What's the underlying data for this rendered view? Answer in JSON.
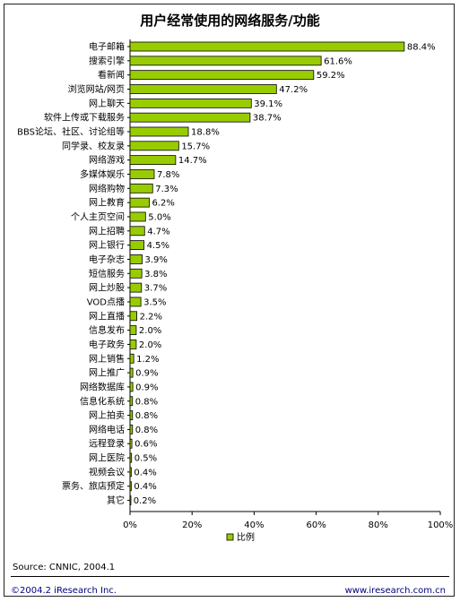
{
  "chart_data": {
    "type": "bar",
    "orientation": "horizontal",
    "title": "用户经常使用的网络服务/功能",
    "categories": [
      "电子邮箱",
      "搜索引擎",
      "看新闻",
      "浏览网站/网页",
      "网上聊天",
      "软件上传或下载服务",
      "BBS论坛、社区、讨论组等",
      "同学录、校友录",
      "网络游戏",
      "多媒体娱乐",
      "网络购物",
      "网上教育",
      "个人主页空间",
      "网上招聘",
      "网上银行",
      "电子杂志",
      "短信服务",
      "网上炒股",
      "VOD点播",
      "网上直播",
      "信息发布",
      "电子政务",
      "网上销售",
      "网上推广",
      "网络数据库",
      "信息化系统",
      "网上拍卖",
      "网络电话",
      "远程登录",
      "网上医院",
      "视频会议",
      "票务、旅店预定",
      "其它"
    ],
    "series": [
      {
        "name": "比例",
        "values": [
          88.4,
          61.6,
          59.2,
          47.2,
          39.1,
          38.7,
          18.8,
          15.7,
          14.7,
          7.8,
          7.3,
          6.2,
          5.0,
          4.7,
          4.5,
          3.9,
          3.8,
          3.7,
          3.5,
          2.2,
          2.0,
          2.0,
          1.2,
          0.9,
          0.9,
          0.8,
          0.8,
          0.8,
          0.6,
          0.5,
          0.4,
          0.4,
          0.2
        ]
      }
    ],
    "value_labels": [
      "88.4%",
      "61.6%",
      "59.2%",
      "47.2%",
      "39.1%",
      "38.7%",
      "18.8%",
      "15.7%",
      "14.7%",
      "7.8%",
      "7.3%",
      "6.2%",
      "5.0%",
      "4.7%",
      "4.5%",
      "3.9%",
      "3.8%",
      "3.7%",
      "3.5%",
      "2.2%",
      "2.0%",
      "2.0%",
      "1.2%",
      "0.9%",
      "0.9%",
      "0.8%",
      "0.8%",
      "0.8%",
      "0.6%",
      "0.5%",
      "0.4%",
      "0.4%",
      "0.2%"
    ],
    "x_ticks": [
      "0%",
      "20%",
      "40%",
      "60%",
      "80%",
      "100%"
    ],
    "xlim": [
      0,
      100
    ],
    "grid": false,
    "legend": {
      "position": "bottom",
      "entries": [
        "比例"
      ]
    },
    "bar_color": "#99cc00"
  },
  "footer": {
    "source": "Source: CNNIC, 2004.1",
    "copyright": "©2004.2 iResearch Inc.",
    "website": "www.iresearch.com.cn"
  },
  "colors": {
    "bar": "#99cc00",
    "footer_text": "#000080"
  }
}
